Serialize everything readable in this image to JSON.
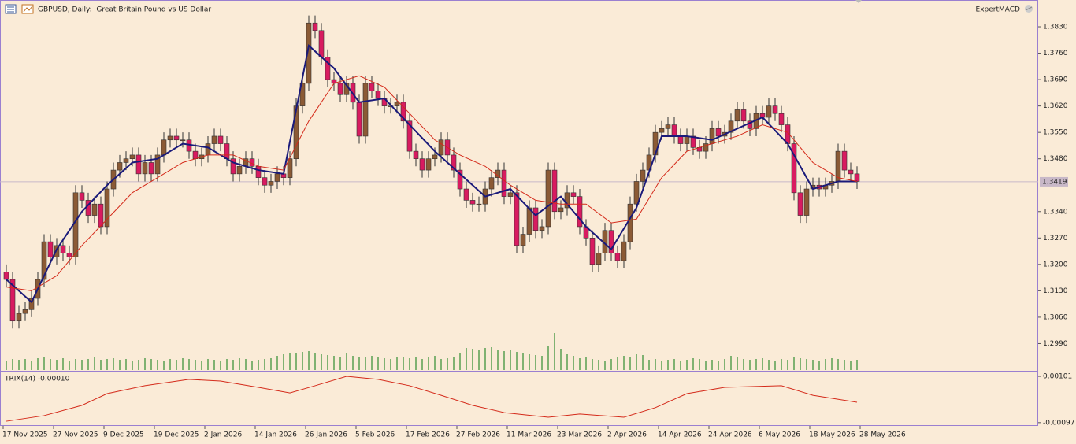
{
  "chart_data": [
    {
      "type": "candlestick",
      "title": "GBPUSD, Daily:  Great Britain Pound vs US Dollar",
      "expert": "ExpertMACD",
      "up_color": "#8b5a35",
      "down_color": "#d81b60",
      "volume_color": "#2e8b2e",
      "candles": [
        [
          1.318,
          1.32,
          1.314,
          1.316
        ],
        [
          1.316,
          1.318,
          1.303,
          1.305
        ],
        [
          1.305,
          1.309,
          1.303,
          1.307
        ],
        [
          1.307,
          1.31,
          1.305,
          1.308
        ],
        [
          1.308,
          1.313,
          1.306,
          1.311
        ],
        [
          1.311,
          1.318,
          1.309,
          1.316
        ],
        [
          1.316,
          1.328,
          1.314,
          1.326
        ],
        [
          1.326,
          1.328,
          1.32,
          1.322
        ],
        [
          1.322,
          1.327,
          1.32,
          1.325
        ],
        [
          1.325,
          1.327,
          1.321,
          1.323
        ],
        [
          1.323,
          1.325,
          1.32,
          1.322
        ],
        [
          1.322,
          1.341,
          1.32,
          1.339
        ],
        [
          1.339,
          1.341,
          1.335,
          1.337
        ],
        [
          1.337,
          1.339,
          1.331,
          1.333
        ],
        [
          1.333,
          1.338,
          1.331,
          1.336
        ],
        [
          1.336,
          1.338,
          1.328,
          1.33
        ],
        [
          1.33,
          1.342,
          1.328,
          1.34
        ],
        [
          1.34,
          1.347,
          1.338,
          1.345
        ],
        [
          1.345,
          1.349,
          1.343,
          1.347
        ],
        [
          1.347,
          1.35,
          1.345,
          1.348
        ],
        [
          1.348,
          1.351,
          1.346,
          1.349
        ],
        [
          1.349,
          1.351,
          1.342,
          1.344
        ],
        [
          1.344,
          1.349,
          1.342,
          1.347
        ],
        [
          1.347,
          1.349,
          1.342,
          1.344
        ],
        [
          1.344,
          1.351,
          1.342,
          1.349
        ],
        [
          1.349,
          1.355,
          1.347,
          1.353
        ],
        [
          1.353,
          1.356,
          1.351,
          1.354
        ],
        [
          1.354,
          1.356,
          1.351,
          1.353
        ],
        [
          1.353,
          1.355,
          1.351,
          1.353
        ],
        [
          1.353,
          1.355,
          1.348,
          1.35
        ],
        [
          1.35,
          1.352,
          1.346,
          1.348
        ],
        [
          1.348,
          1.351,
          1.346,
          1.349
        ],
        [
          1.349,
          1.354,
          1.347,
          1.352
        ],
        [
          1.352,
          1.356,
          1.35,
          1.354
        ],
        [
          1.354,
          1.356,
          1.35,
          1.352
        ],
        [
          1.352,
          1.354,
          1.346,
          1.348
        ],
        [
          1.348,
          1.35,
          1.342,
          1.344
        ],
        [
          1.344,
          1.348,
          1.342,
          1.346
        ],
        [
          1.346,
          1.35,
          1.344,
          1.348
        ],
        [
          1.348,
          1.35,
          1.344,
          1.346
        ],
        [
          1.346,
          1.348,
          1.341,
          1.343
        ],
        [
          1.343,
          1.345,
          1.339,
          1.341
        ],
        [
          1.341,
          1.344,
          1.339,
          1.342
        ],
        [
          1.342,
          1.346,
          1.34,
          1.344
        ],
        [
          1.344,
          1.346,
          1.341,
          1.343
        ],
        [
          1.343,
          1.35,
          1.341,
          1.348
        ],
        [
          1.348,
          1.364,
          1.346,
          1.362
        ],
        [
          1.362,
          1.37,
          1.36,
          1.368
        ],
        [
          1.368,
          1.386,
          1.366,
          1.384
        ],
        [
          1.384,
          1.386,
          1.38,
          1.382
        ],
        [
          1.382,
          1.384,
          1.373,
          1.375
        ],
        [
          1.375,
          1.377,
          1.367,
          1.369
        ],
        [
          1.369,
          1.371,
          1.366,
          1.368
        ],
        [
          1.368,
          1.37,
          1.363,
          1.365
        ],
        [
          1.365,
          1.37,
          1.363,
          1.368
        ],
        [
          1.368,
          1.37,
          1.361,
          1.363
        ],
        [
          1.363,
          1.365,
          1.352,
          1.354
        ],
        [
          1.354,
          1.37,
          1.352,
          1.368
        ],
        [
          1.368,
          1.37,
          1.364,
          1.366
        ],
        [
          1.366,
          1.368,
          1.362,
          1.364
        ],
        [
          1.364,
          1.366,
          1.36,
          1.362
        ],
        [
          1.362,
          1.364,
          1.36,
          1.362
        ],
        [
          1.362,
          1.365,
          1.36,
          1.363
        ],
        [
          1.363,
          1.365,
          1.356,
          1.358
        ],
        [
          1.358,
          1.36,
          1.348,
          1.35
        ],
        [
          1.35,
          1.352,
          1.346,
          1.348
        ],
        [
          1.348,
          1.35,
          1.343,
          1.345
        ],
        [
          1.345,
          1.35,
          1.343,
          1.348
        ],
        [
          1.348,
          1.351,
          1.346,
          1.349
        ],
        [
          1.349,
          1.355,
          1.347,
          1.353
        ],
        [
          1.353,
          1.355,
          1.347,
          1.349
        ],
        [
          1.349,
          1.351,
          1.343,
          1.345
        ],
        [
          1.345,
          1.347,
          1.338,
          1.34
        ],
        [
          1.34,
          1.342,
          1.335,
          1.337
        ],
        [
          1.337,
          1.339,
          1.334,
          1.336
        ],
        [
          1.336,
          1.338,
          1.334,
          1.336
        ],
        [
          1.336,
          1.342,
          1.334,
          1.34
        ],
        [
          1.34,
          1.345,
          1.338,
          1.343
        ],
        [
          1.343,
          1.347,
          1.341,
          1.345
        ],
        [
          1.345,
          1.347,
          1.336,
          1.338
        ],
        [
          1.338,
          1.341,
          1.336,
          1.339
        ],
        [
          1.339,
          1.341,
          1.323,
          1.325
        ],
        [
          1.325,
          1.33,
          1.323,
          1.328
        ],
        [
          1.328,
          1.337,
          1.326,
          1.335
        ],
        [
          1.335,
          1.337,
          1.327,
          1.329
        ],
        [
          1.329,
          1.332,
          1.327,
          1.33
        ],
        [
          1.33,
          1.347,
          1.328,
          1.345
        ],
        [
          1.345,
          1.347,
          1.332,
          1.334
        ],
        [
          1.334,
          1.337,
          1.332,
          1.335
        ],
        [
          1.335,
          1.341,
          1.333,
          1.339
        ],
        [
          1.339,
          1.341,
          1.336,
          1.338
        ],
        [
          1.338,
          1.34,
          1.328,
          1.33
        ],
        [
          1.33,
          1.332,
          1.325,
          1.327
        ],
        [
          1.327,
          1.329,
          1.318,
          1.32
        ],
        [
          1.32,
          1.325,
          1.318,
          1.323
        ],
        [
          1.323,
          1.331,
          1.321,
          1.329
        ],
        [
          1.329,
          1.331,
          1.321,
          1.323
        ],
        [
          1.323,
          1.325,
          1.319,
          1.321
        ],
        [
          1.321,
          1.328,
          1.319,
          1.326
        ],
        [
          1.326,
          1.338,
          1.324,
          1.336
        ],
        [
          1.336,
          1.344,
          1.334,
          1.342
        ],
        [
          1.342,
          1.347,
          1.34,
          1.345
        ],
        [
          1.345,
          1.351,
          1.343,
          1.349
        ],
        [
          1.349,
          1.357,
          1.347,
          1.355
        ],
        [
          1.355,
          1.358,
          1.353,
          1.356
        ],
        [
          1.356,
          1.359,
          1.354,
          1.357
        ],
        [
          1.357,
          1.359,
          1.352,
          1.354
        ],
        [
          1.354,
          1.356,
          1.35,
          1.352
        ],
        [
          1.352,
          1.356,
          1.35,
          1.354
        ],
        [
          1.354,
          1.356,
          1.349,
          1.351
        ],
        [
          1.351,
          1.353,
          1.348,
          1.35
        ],
        [
          1.35,
          1.354,
          1.348,
          1.352
        ],
        [
          1.352,
          1.358,
          1.35,
          1.356
        ],
        [
          1.356,
          1.358,
          1.352,
          1.354
        ],
        [
          1.354,
          1.357,
          1.352,
          1.355
        ],
        [
          1.355,
          1.36,
          1.353,
          1.358
        ],
        [
          1.358,
          1.363,
          1.356,
          1.361
        ],
        [
          1.361,
          1.363,
          1.356,
          1.358
        ],
        [
          1.358,
          1.36,
          1.354,
          1.356
        ],
        [
          1.356,
          1.362,
          1.354,
          1.36
        ],
        [
          1.36,
          1.362,
          1.357,
          1.359
        ],
        [
          1.359,
          1.364,
          1.357,
          1.362
        ],
        [
          1.362,
          1.364,
          1.358,
          1.36
        ],
        [
          1.36,
          1.362,
          1.355,
          1.357
        ],
        [
          1.357,
          1.359,
          1.35,
          1.352
        ],
        [
          1.352,
          1.354,
          1.337,
          1.339
        ],
        [
          1.339,
          1.341,
          1.331,
          1.333
        ],
        [
          1.333,
          1.342,
          1.331,
          1.34
        ],
        [
          1.34,
          1.343,
          1.338,
          1.341
        ],
        [
          1.341,
          1.343,
          1.338,
          1.34
        ],
        [
          1.34,
          1.343,
          1.338,
          1.341
        ],
        [
          1.341,
          1.344,
          1.339,
          1.342
        ],
        [
          1.342,
          1.352,
          1.34,
          1.35
        ],
        [
          1.35,
          1.352,
          1.343,
          1.345
        ],
        [
          1.345,
          1.347,
          1.342,
          1.344
        ],
        [
          1.344,
          1.346,
          1.34,
          1.342
        ]
      ],
      "volumes": [
        12,
        14,
        13,
        14,
        12,
        15,
        16,
        14,
        13,
        15,
        12,
        14,
        13,
        14,
        16,
        13,
        14,
        15,
        13,
        14,
        12,
        13,
        15,
        14,
        13,
        12,
        14,
        13,
        15,
        14,
        13,
        12,
        14,
        13,
        12,
        14,
        13,
        15,
        14,
        12,
        13,
        14,
        15,
        18,
        20,
        22,
        21,
        23,
        24,
        22,
        20,
        19,
        18,
        17,
        21,
        18,
        16,
        17,
        18,
        16,
        15,
        14,
        17,
        16,
        15,
        16,
        14,
        17,
        18,
        14,
        15,
        17,
        22,
        28,
        27,
        26,
        28,
        29,
        25,
        24,
        26,
        23,
        22,
        20,
        19,
        18,
        30,
        47,
        27,
        20,
        18,
        15,
        16,
        14,
        13,
        12,
        14,
        16,
        18,
        17,
        20,
        19,
        13,
        14,
        12,
        13,
        14,
        12,
        13,
        15,
        14,
        12,
        13,
        12,
        14,
        18,
        16,
        14,
        13,
        14,
        15,
        13,
        12,
        14,
        13,
        16,
        15,
        14,
        13,
        12,
        14,
        15,
        14,
        13,
        12,
        13
      ],
      "overlays": [
        {
          "color": "#1a1a7a",
          "x": [
            0,
            4,
            8,
            12,
            16,
            20,
            24,
            28,
            32,
            36,
            40,
            44,
            48,
            52,
            56,
            60,
            64,
            68,
            72,
            76,
            80,
            84,
            88,
            92,
            96,
            100,
            104,
            108,
            112,
            116,
            120,
            124,
            128,
            132,
            135
          ],
          "values": [
            1.316,
            1.31,
            1.324,
            1.334,
            1.341,
            1.347,
            1.348,
            1.352,
            1.351,
            1.347,
            1.345,
            1.344,
            1.378,
            1.372,
            1.363,
            1.364,
            1.357,
            1.35,
            1.344,
            1.338,
            1.34,
            1.333,
            1.338,
            1.33,
            1.324,
            1.335,
            1.354,
            1.354,
            1.353,
            1.356,
            1.359,
            1.352,
            1.34,
            1.342,
            1.342
          ]
        },
        {
          "color": "#d42a1a",
          "x": [
            0,
            4,
            8,
            12,
            16,
            20,
            24,
            28,
            32,
            36,
            40,
            44,
            48,
            52,
            56,
            60,
            64,
            68,
            72,
            76,
            80,
            84,
            88,
            92,
            96,
            100,
            104,
            108,
            112,
            116,
            120,
            124,
            128,
            132,
            135
          ],
          "values": [
            1.314,
            1.313,
            1.317,
            1.325,
            1.332,
            1.339,
            1.343,
            1.347,
            1.349,
            1.349,
            1.346,
            1.345,
            1.358,
            1.368,
            1.37,
            1.367,
            1.36,
            1.353,
            1.349,
            1.346,
            1.341,
            1.337,
            1.336,
            1.336,
            1.331,
            1.332,
            1.343,
            1.35,
            1.352,
            1.354,
            1.357,
            1.355,
            1.347,
            1.343,
            1.342
          ]
        }
      ],
      "current_price": 1.3419,
      "ylim": [
        1.292,
        1.3901
      ],
      "yticks": [
        {
          "value": 1.383,
          "label": "1.3830"
        },
        {
          "value": 1.376,
          "label": "1.3760"
        },
        {
          "value": 1.369,
          "label": "1.3690"
        },
        {
          "value": 1.362,
          "label": "1.3620"
        },
        {
          "value": 1.355,
          "label": "1.3550"
        },
        {
          "value": 1.348,
          "label": "1.3480"
        },
        {
          "value": 1.334,
          "label": "1.3340"
        },
        {
          "value": 1.327,
          "label": "1.3270"
        },
        {
          "value": 1.32,
          "label": "1.3200"
        },
        {
          "value": 1.313,
          "label": "1.3130"
        },
        {
          "value": 1.306,
          "label": "1.3060"
        },
        {
          "value": 1.299,
          "label": "1.2990"
        }
      ],
      "x_labels": [
        "17 Nov 2025",
        "27 Nov 2025",
        "9 Dec 2025",
        "19 Dec 2025",
        "2 Jan 2026",
        "14 Jan 2026",
        "26 Jan 2026",
        "5 Feb 2026",
        "17 Feb 2026",
        "27 Feb 2026",
        "11 Mar 2026",
        "23 Mar 2026",
        "2 Apr 2026",
        "14 Apr 2026",
        "24 Apr 2026",
        "6 May 2026",
        "18 May 2026",
        "28 May 2026"
      ]
    },
    {
      "type": "line",
      "title": "TRIX(14) -0.00010",
      "color": "#d42a1a",
      "x": [
        0,
        6,
        12,
        16,
        22,
        29,
        34,
        40,
        45,
        49,
        54,
        59,
        64,
        69,
        74,
        79,
        86,
        91,
        98,
        103,
        108,
        114,
        123,
        128,
        135
      ],
      "values": [
        -0.00091,
        -0.00067,
        -0.00023,
        0.00027,
        0.00061,
        0.00088,
        0.00081,
        0.00054,
        0.0003,
        0.00061,
        0.00101,
        0.00088,
        0.00061,
        0.0002,
        -0.00023,
        -0.00054,
        -0.00074,
        -0.0006,
        -0.00074,
        -0.00033,
        0.00027,
        0.00054,
        0.00061,
        0.0002,
        -0.0001
      ],
      "ylim": [
        -0.00111,
        0.00118
      ],
      "yticks": [
        {
          "value": 0.00101,
          "label": "0.00101"
        },
        {
          "value": -0.00097,
          "label": "-0.00097"
        }
      ]
    }
  ]
}
